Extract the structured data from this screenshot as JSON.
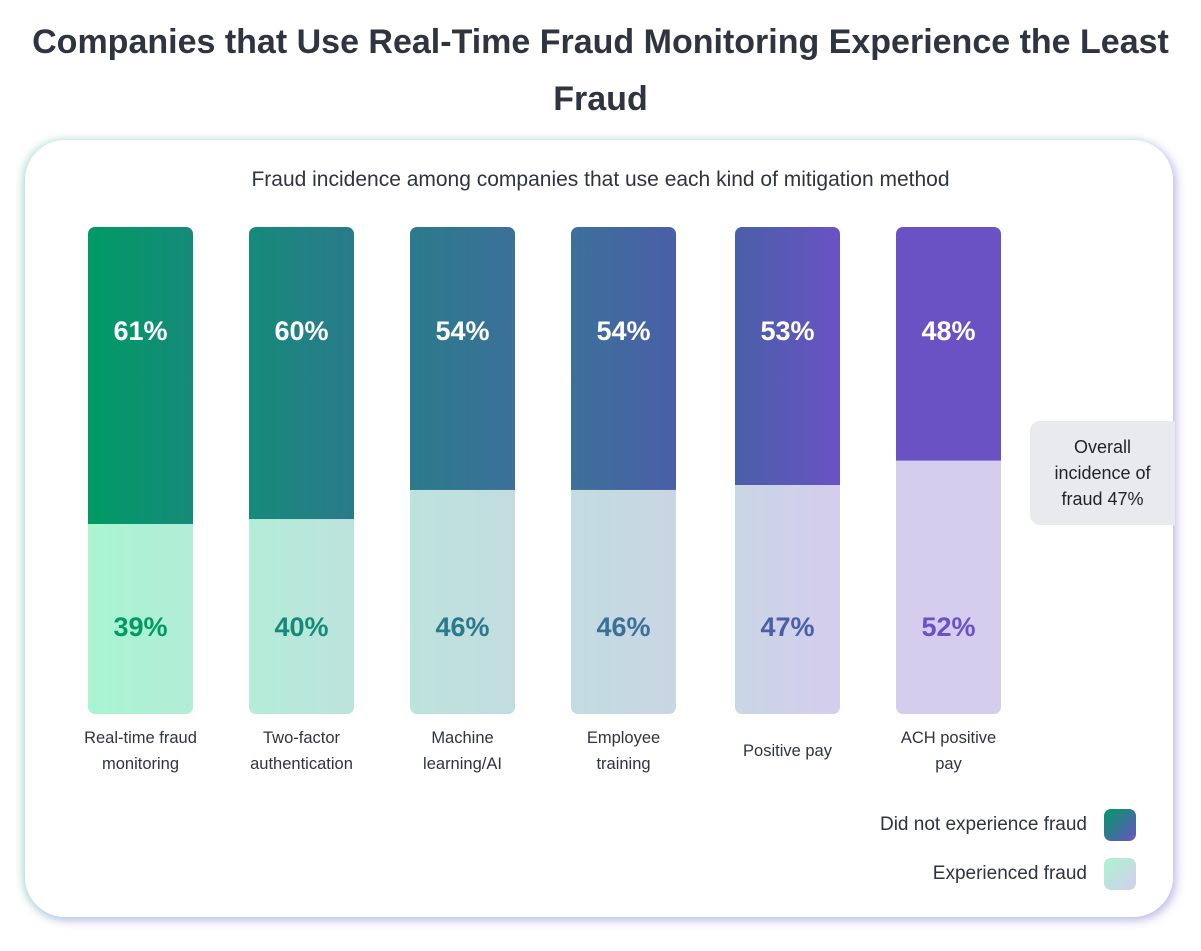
{
  "chart_data": {
    "type": "bar",
    "stacked": true,
    "title": "Companies that Use Real-Time Fraud Monitoring Experience the Least Fraud",
    "subtitle": "Fraud incidence among companies that use each kind of mitigation method",
    "categories": [
      "Real-time fraud monitoring",
      "Two-factor authentication",
      "Machine learning/AI",
      "Employee training",
      "Positive pay",
      "ACH positive pay"
    ],
    "series": [
      {
        "name": "Did not experience fraud",
        "values": [
          61,
          60,
          54,
          54,
          53,
          48
        ],
        "labels": [
          "61%",
          "60%",
          "54%",
          "54%",
          "53%",
          "48%"
        ]
      },
      {
        "name": "Experienced fraud",
        "values": [
          39,
          40,
          46,
          46,
          47,
          52
        ],
        "labels": [
          "39%",
          "40%",
          "46%",
          "46%",
          "47%",
          "52%"
        ]
      }
    ],
    "ylim": [
      0,
      100
    ],
    "annotation": "Overall incidence of fraud 47%",
    "legend_position": "bottom-right",
    "colors": {
      "top": [
        "#009a64",
        "#168a7a",
        "#2b7a8b",
        "#3c7099",
        "#4a5fa8",
        "#6a52c4"
      ],
      "bottom": [
        "#a8f5d0",
        "#b3ecd8",
        "#bde3dd",
        "#c2dce0",
        "#c9d6e4",
        "#d5cdee"
      ],
      "top_text": "#ffffff",
      "bottom_text": [
        "#009a64",
        "#168a7a",
        "#2b7a8b",
        "#3c7099",
        "#4a5fa8",
        "#6a52c4"
      ]
    }
  }
}
